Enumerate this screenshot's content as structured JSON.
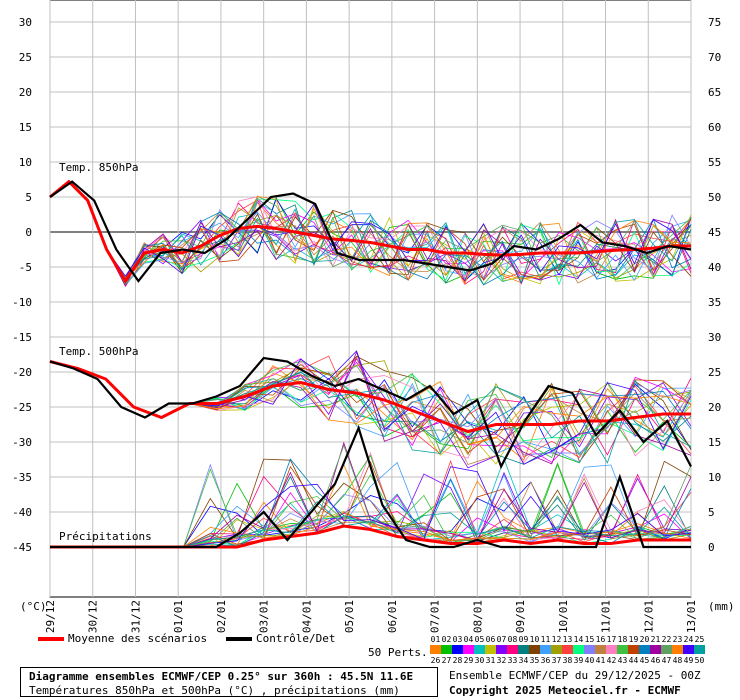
{
  "chart_data": {
    "type": "line",
    "top_panel_label": "Temp. 850hPa",
    "mid_panel_label": "Temp. 500hPa",
    "bottom_panel_label": "Précipitations",
    "left_axis_unit": "(°C)",
    "right_axis_unit": "(mm)",
    "left_ticks": [
      30,
      25,
      20,
      15,
      10,
      5,
      0,
      -5,
      -10,
      -15,
      -20,
      -25,
      -30,
      -35,
      -40,
      -45
    ],
    "right_ticks": [
      75,
      70,
      65,
      60,
      55,
      50,
      45,
      40,
      35,
      30,
      25,
      20,
      15,
      10,
      5,
      0
    ],
    "x_dates": [
      "29/12",
      "30/12",
      "31/12",
      "01/01",
      "02/01",
      "03/01",
      "04/01",
      "05/01",
      "06/01",
      "07/01",
      "08/01",
      "09/01",
      "10/01",
      "11/01",
      "12/01",
      "13/01"
    ],
    "ylim_left": [
      -45,
      30
    ],
    "ylim_right": [
      0,
      75
    ],
    "grid": true,
    "series": [
      {
        "name": "Moyenne des scénarios",
        "color": "#ff0000",
        "t850": [
          5,
          7.2,
          4.5,
          -2.5,
          -7,
          -3,
          -2.5,
          -3,
          -2,
          -0.5,
          0.5,
          0.8,
          0.5,
          0,
          -0.5,
          -1,
          -1.2,
          -1.5,
          -2,
          -2.5,
          -2.5,
          -3,
          -3,
          -3.2,
          -3.3,
          -3.2,
          -3,
          -3,
          -3,
          -2.8,
          -2.6,
          -2.5,
          -2.3,
          -2,
          -2
        ],
        "t500": [
          -18.5,
          -19.5,
          -21,
          -25,
          -26.5,
          -24.5,
          -24.5,
          -23.5,
          -22,
          -21.5,
          -22.5,
          -23,
          -24,
          -25.5,
          -27,
          -28.5,
          -27.5,
          -27.5,
          -27.5,
          -27,
          -27,
          -26.5,
          -26,
          -26
        ],
        "precip": [
          0,
          0,
          0,
          0,
          0,
          0,
          0,
          0,
          1,
          1.5,
          2,
          3,
          2.5,
          1.5,
          1,
          0.5,
          0.5,
          1,
          0.5,
          1,
          0.5,
          0.5,
          1,
          1,
          1
        ]
      },
      {
        "name": "Contrôle/Det",
        "color": "#000000",
        "t850": [
          5,
          7.2,
          4.5,
          -2.5,
          -7,
          -3,
          -2.5,
          -3,
          -1,
          2,
          5,
          5.5,
          4,
          -3,
          -4,
          -4,
          -4,
          -4.5,
          -5,
          -5.5,
          -4.5,
          -2,
          -2.5,
          -1,
          1,
          -1.5,
          -2,
          -3,
          -2,
          -2.5
        ],
        "t500": [
          -18.5,
          -19.5,
          -21,
          -25,
          -26.5,
          -24.5,
          -24.5,
          -23.5,
          -22,
          -18,
          -18.5,
          -20.5,
          -22,
          -21,
          -22.5,
          -24,
          -22,
          -26,
          -24,
          -33.5,
          -27,
          -22,
          -23,
          -29,
          -25.5,
          -30,
          -27,
          -33.5
        ],
        "precip": [
          0,
          0,
          0,
          0,
          0,
          0,
          0,
          0,
          2,
          5,
          1,
          5,
          9,
          17,
          6,
          1,
          0,
          0,
          1,
          0,
          0,
          0,
          0,
          0,
          10,
          0,
          0,
          0
        ]
      }
    ]
  },
  "legend": {
    "mean_label": "Moyenne des scénarios",
    "ctrl_label": "Contrôle/Det",
    "perts_label": "50 Perts.",
    "perts_row1": [
      "01",
      "02",
      "03",
      "04",
      "05",
      "06",
      "07",
      "08",
      "09",
      "10",
      "11",
      "12",
      "13",
      "14",
      "15",
      "16",
      "17",
      "18",
      "19",
      "20",
      "21",
      "22",
      "23",
      "24",
      "25"
    ],
    "perts_row2": [
      "26",
      "27",
      "28",
      "29",
      "30",
      "31",
      "32",
      "33",
      "34",
      "35",
      "36",
      "37",
      "38",
      "39",
      "40",
      "41",
      "42",
      "43",
      "44",
      "45",
      "46",
      "47",
      "48",
      "49",
      "50"
    ]
  },
  "footer": {
    "title": "Diagramme ensembles ECMWF/CEP 0.25° sur 360h : 45.5N 11.6E",
    "subtitle": "Températures 850hPa et 500hPa (°C) , précipitations (mm)",
    "credits": "Ensemble ECMWF/CEP du 29/12/2025 - 00Z",
    "copyright": "Copyright 2025 Meteociel.fr - ECMWF"
  },
  "colors": {
    "mean": "#ff0000",
    "control": "#000000",
    "grid": "#c0c0c0",
    "zero_line": "#808080",
    "members": [
      "#ff7f00",
      "#00c000",
      "#0000ff",
      "#ff00ff",
      "#00c0c0",
      "#c0c000",
      "#8000ff",
      "#ff0080",
      "#008080",
      "#804000",
      "#40a0ff",
      "#a0a000",
      "#ff4040",
      "#00ff80",
      "#8080ff",
      "#c08040",
      "#ff80c0",
      "#40c040",
      "#c04000",
      "#0080c0",
      "#a000a0",
      "#60a060",
      "#ff8000",
      "#4000ff",
      "#00a0a0"
    ]
  }
}
